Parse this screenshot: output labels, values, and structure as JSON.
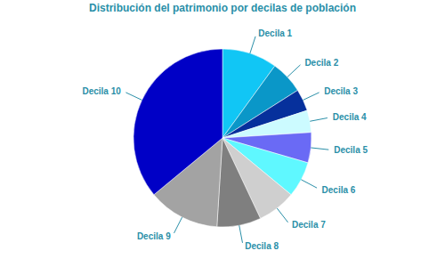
{
  "chart_data": {
    "type": "pie",
    "title": "Distribución del patrimonio por decilas de población",
    "categories": [
      "Decila 1",
      "Decila 2",
      "Decila 3",
      "Decila 4",
      "Decila 5",
      "Decila 6",
      "Decila 7",
      "Decila 8",
      "Decila 9",
      "Decila 10"
    ],
    "values": [
      10,
      6,
      4,
      4,
      5.5,
      6.5,
      7,
      8,
      13,
      36
    ],
    "colors": [
      "#11c6f5",
      "#0a97c8",
      "#06309c",
      "#ccfbff",
      "#6a6af5",
      "#5ff8ff",
      "#cfcfcf",
      "#7f7f7f",
      "#a3a3a3",
      "#0000c6"
    ]
  }
}
